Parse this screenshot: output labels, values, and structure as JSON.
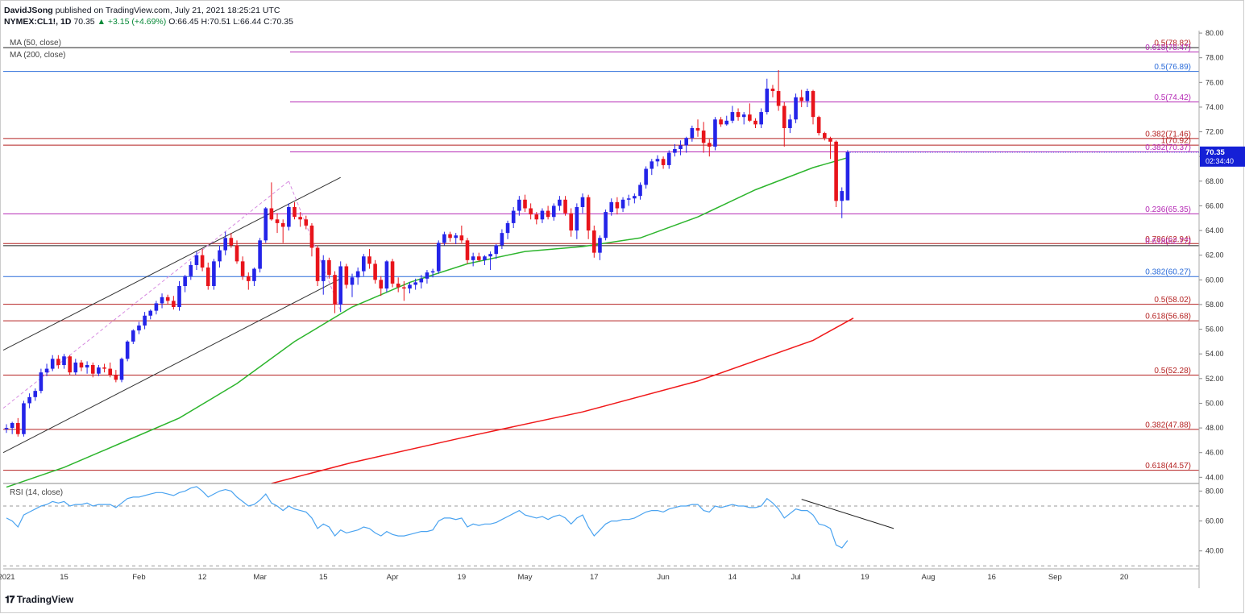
{
  "header": {
    "publisher": "DavidJSong",
    "published_text": "published on TradingView.com, July 21, 2021 18:25:21 UTC",
    "symbol": "NYMEX:CL1!, 1D",
    "last": "70.35",
    "change": "▲ +3.15 (+4.69%)",
    "open": "O:66.45",
    "high": "H:70.51",
    "low": "L:66.44",
    "close": "C:70.35"
  },
  "indicators": {
    "ma50": "MA (50, close)",
    "ma200": "MA (200, close)",
    "rsi": "RSI (14, close)"
  },
  "price_tag": {
    "value": "70.35",
    "countdown": "02:34:40"
  },
  "brand": "TradingView",
  "colors": {
    "up": "#2424e8",
    "down": "#e8141b",
    "ma50": "#2db52d",
    "ma200": "#f0191a",
    "rsi": "#4aa3f0",
    "fib_magenta": "#b52ab5",
    "fib_blue": "#2a6bd9",
    "fib_red": "#b52222",
    "channel": "#000000"
  },
  "chart_data": [
    {
      "type": "candlestick",
      "title": "NYMEX:CL1!, 1D",
      "ylim": [
        43.5,
        80.2
      ],
      "yticks": [
        "80.00",
        "78.00",
        "76.00",
        "74.00",
        "72.00",
        "70.00",
        "68.00",
        "66.00",
        "64.00",
        "62.00",
        "60.00",
        "58.00",
        "56.00",
        "54.00",
        "52.00",
        "50.00",
        "48.00",
        "46.00",
        "44.00"
      ],
      "xticks": [
        "2021",
        "15",
        "Feb",
        "12",
        "Mar",
        "15",
        "Apr",
        "19",
        "May",
        "17",
        "Jun",
        "14",
        "Jul",
        "19",
        "Aug",
        "16",
        "Sep",
        "20"
      ],
      "candles": [
        [
          47.9,
          48.3,
          47.6,
          48.0
        ],
        [
          48.0,
          48.5,
          47.5,
          48.4
        ],
        [
          48.4,
          48.8,
          47.3,
          47.5
        ],
        [
          47.5,
          50.2,
          47.3,
          50.0
        ],
        [
          50.0,
          50.8,
          49.6,
          50.5
        ],
        [
          50.5,
          51.2,
          50.2,
          51.0
        ],
        [
          51.0,
          52.8,
          50.8,
          52.5
        ],
        [
          52.5,
          53.2,
          52.2,
          52.8
        ],
        [
          52.8,
          53.9,
          52.6,
          53.6
        ],
        [
          53.6,
          53.9,
          52.8,
          53.1
        ],
        [
          53.1,
          54.0,
          52.8,
          53.8
        ],
        [
          53.8,
          53.9,
          52.3,
          52.5
        ],
        [
          52.5,
          53.6,
          52.3,
          53.3
        ],
        [
          53.3,
          53.5,
          52.6,
          52.9
        ],
        [
          52.9,
          53.4,
          52.4,
          53.1
        ],
        [
          53.1,
          53.3,
          52.1,
          52.4
        ],
        [
          52.4,
          53.1,
          52.2,
          52.9
        ],
        [
          52.9,
          53.2,
          52.5,
          52.8
        ],
        [
          52.8,
          53.3,
          52.1,
          52.3
        ],
        [
          52.3,
          52.7,
          51.7,
          51.9
        ],
        [
          51.9,
          53.7,
          51.7,
          53.6
        ],
        [
          53.6,
          55.1,
          53.4,
          55.0
        ],
        [
          55.0,
          56.0,
          54.8,
          55.9
        ],
        [
          55.9,
          56.6,
          55.6,
          56.3
        ],
        [
          56.3,
          57.4,
          56.0,
          57.1
        ],
        [
          57.1,
          57.6,
          56.8,
          57.5
        ],
        [
          57.5,
          58.3,
          57.2,
          58.1
        ],
        [
          58.1,
          58.9,
          57.7,
          58.6
        ],
        [
          58.6,
          58.8,
          58.0,
          58.3
        ],
        [
          58.3,
          58.7,
          57.6,
          57.8
        ],
        [
          57.8,
          59.9,
          57.5,
          59.5
        ],
        [
          59.5,
          60.4,
          59.0,
          60.3
        ],
        [
          60.3,
          61.5,
          60.0,
          61.2
        ],
        [
          61.2,
          62.3,
          60.8,
          62.0
        ],
        [
          62.0,
          62.5,
          60.7,
          61.0
        ],
        [
          61.0,
          61.4,
          59.2,
          59.5
        ],
        [
          59.5,
          61.7,
          59.2,
          61.5
        ],
        [
          61.5,
          62.8,
          61.0,
          62.4
        ],
        [
          62.4,
          63.9,
          62.0,
          63.4
        ],
        [
          63.4,
          63.8,
          62.6,
          62.8
        ],
        [
          62.8,
          63.2,
          61.3,
          61.5
        ],
        [
          61.5,
          61.9,
          60.0,
          60.3
        ],
        [
          60.3,
          60.6,
          59.2,
          59.9
        ],
        [
          59.9,
          61.0,
          59.5,
          60.9
        ],
        [
          60.9,
          63.4,
          60.6,
          63.2
        ],
        [
          63.2,
          65.9,
          63.0,
          65.8
        ],
        [
          65.8,
          67.9,
          64.8,
          64.9
        ],
        [
          64.9,
          65.4,
          63.8,
          64.6
        ],
        [
          64.6,
          64.9,
          63.0,
          64.3
        ],
        [
          64.3,
          66.2,
          64.0,
          65.9
        ],
        [
          65.9,
          66.3,
          64.9,
          65.1
        ],
        [
          65.1,
          65.5,
          64.3,
          64.9
        ],
        [
          64.9,
          65.2,
          64.1,
          64.4
        ],
        [
          64.4,
          64.6,
          61.9,
          62.6
        ],
        [
          62.6,
          62.8,
          59.5,
          59.9
        ],
        [
          59.9,
          62.0,
          58.8,
          61.6
        ],
        [
          61.6,
          61.8,
          60.1,
          60.4
        ],
        [
          60.4,
          60.7,
          57.3,
          58.0
        ],
        [
          58.0,
          61.5,
          57.4,
          61.1
        ],
        [
          61.1,
          61.3,
          59.3,
          59.6
        ],
        [
          59.6,
          60.5,
          58.6,
          60.2
        ],
        [
          60.2,
          61.0,
          59.6,
          60.7
        ],
        [
          60.7,
          62.1,
          60.3,
          61.9
        ],
        [
          61.9,
          62.5,
          60.9,
          61.3
        ],
        [
          61.3,
          61.6,
          59.7,
          60.0
        ],
        [
          60.0,
          60.3,
          58.7,
          59.3
        ],
        [
          59.3,
          61.6,
          59.0,
          61.5
        ],
        [
          61.5,
          61.7,
          59.4,
          59.7
        ],
        [
          59.7,
          60.2,
          59.0,
          59.4
        ],
        [
          59.4,
          59.9,
          58.3,
          59.3
        ],
        [
          59.3,
          59.8,
          58.9,
          59.6
        ],
        [
          59.6,
          60.1,
          59.2,
          59.8
        ],
        [
          59.8,
          60.4,
          59.3,
          60.1
        ],
        [
          60.1,
          60.8,
          59.7,
          60.6
        ],
        [
          60.6,
          60.9,
          60.2,
          60.7
        ],
        [
          60.7,
          63.2,
          60.5,
          63.0
        ],
        [
          63.0,
          63.9,
          62.8,
          63.7
        ],
        [
          63.7,
          63.9,
          63.1,
          63.4
        ],
        [
          63.4,
          63.8,
          62.9,
          63.6
        ],
        [
          63.6,
          64.4,
          63.0,
          63.2
        ],
        [
          63.2,
          63.4,
          61.3,
          61.6
        ],
        [
          61.6,
          62.2,
          61.1,
          61.9
        ],
        [
          61.9,
          62.2,
          61.5,
          61.6
        ],
        [
          61.6,
          62.0,
          61.2,
          61.9
        ],
        [
          61.9,
          62.3,
          60.8,
          62.1
        ],
        [
          62.1,
          62.9,
          61.7,
          62.8
        ],
        [
          62.8,
          64.1,
          62.5,
          63.8
        ],
        [
          63.8,
          64.8,
          63.3,
          64.6
        ],
        [
          64.6,
          65.9,
          64.2,
          65.6
        ],
        [
          65.6,
          66.8,
          65.2,
          66.5
        ],
        [
          66.5,
          66.9,
          65.5,
          65.8
        ],
        [
          65.8,
          66.2,
          64.9,
          65.3
        ],
        [
          65.3,
          65.5,
          64.5,
          64.9
        ],
        [
          64.9,
          65.8,
          64.6,
          65.6
        ],
        [
          65.6,
          66.0,
          64.9,
          65.1
        ],
        [
          65.1,
          66.2,
          64.8,
          66.0
        ],
        [
          66.0,
          66.8,
          65.6,
          66.5
        ],
        [
          66.5,
          66.8,
          65.2,
          65.4
        ],
        [
          65.4,
          65.8,
          63.5,
          64.0
        ],
        [
          64.0,
          66.2,
          63.3,
          65.9
        ],
        [
          65.9,
          67.0,
          65.4,
          66.7
        ],
        [
          66.7,
          66.9,
          63.3,
          64.0
        ],
        [
          64.0,
          64.4,
          61.8,
          62.2
        ],
        [
          62.2,
          63.6,
          61.6,
          63.4
        ],
        [
          63.4,
          65.7,
          63.2,
          65.5
        ],
        [
          65.5,
          66.6,
          65.2,
          66.3
        ],
        [
          66.3,
          66.7,
          65.3,
          65.8
        ],
        [
          65.8,
          66.7,
          65.5,
          66.5
        ],
        [
          66.5,
          66.9,
          66.0,
          66.6
        ],
        [
          66.6,
          67.0,
          66.2,
          66.8
        ],
        [
          66.8,
          67.9,
          66.5,
          67.7
        ],
        [
          67.7,
          69.2,
          67.4,
          69.0
        ],
        [
          69.0,
          69.8,
          68.5,
          69.6
        ],
        [
          69.6,
          70.1,
          69.2,
          69.8
        ],
        [
          69.8,
          70.0,
          69.0,
          69.3
        ],
        [
          69.3,
          70.5,
          69.0,
          70.3
        ],
        [
          70.3,
          71.0,
          70.0,
          70.6
        ],
        [
          70.6,
          71.3,
          70.1,
          70.9
        ],
        [
          70.9,
          71.6,
          70.3,
          71.5
        ],
        [
          71.5,
          72.5,
          71.2,
          72.3
        ],
        [
          72.3,
          73.0,
          71.6,
          72.1
        ],
        [
          72.1,
          72.8,
          70.3,
          71.1
        ],
        [
          71.1,
          71.4,
          70.0,
          70.8
        ],
        [
          70.8,
          73.2,
          70.5,
          73.0
        ],
        [
          73.0,
          73.2,
          72.4,
          72.6
        ],
        [
          72.6,
          73.3,
          72.5,
          72.9
        ],
        [
          72.9,
          74.1,
          72.7,
          73.6
        ],
        [
          73.6,
          73.9,
          72.9,
          73.2
        ],
        [
          73.2,
          73.6,
          72.6,
          73.4
        ],
        [
          73.4,
          74.3,
          72.8,
          72.9
        ],
        [
          72.9,
          73.1,
          72.3,
          72.6
        ],
        [
          72.6,
          73.9,
          72.3,
          73.6
        ],
        [
          73.6,
          76.3,
          73.4,
          75.5
        ],
        [
          75.5,
          75.8,
          74.8,
          75.3
        ],
        [
          75.3,
          77.0,
          73.7,
          74.1
        ],
        [
          74.1,
          74.4,
          70.8,
          72.3
        ],
        [
          72.3,
          73.4,
          71.9,
          73.0
        ],
        [
          73.0,
          75.1,
          72.7,
          74.8
        ],
        [
          74.8,
          75.4,
          74.0,
          74.5
        ],
        [
          74.5,
          75.5,
          74.0,
          75.3
        ],
        [
          75.3,
          75.4,
          72.6,
          73.2
        ],
        [
          73.2,
          73.3,
          71.7,
          71.9
        ],
        [
          71.9,
          72.0,
          71.3,
          71.5
        ],
        [
          71.5,
          71.6,
          69.8,
          71.2
        ],
        [
          71.2,
          71.3,
          65.9,
          66.4
        ],
        [
          66.4,
          67.5,
          65.0,
          67.2
        ],
        [
          66.45,
          70.51,
          66.44,
          70.35
        ]
      ],
      "ma50": [
        [
          0,
          43.2
        ],
        [
          10,
          44.8
        ],
        [
          20,
          46.8
        ],
        [
          30,
          48.8
        ],
        [
          40,
          51.6
        ],
        [
          50,
          55.0
        ],
        [
          60,
          57.8
        ],
        [
          70,
          59.8
        ],
        [
          80,
          61.3
        ],
        [
          90,
          62.3
        ],
        [
          100,
          62.7
        ],
        [
          110,
          63.4
        ],
        [
          120,
          65.1
        ],
        [
          130,
          67.3
        ],
        [
          140,
          69.1
        ],
        [
          146,
          69.9
        ]
      ],
      "ma200": [
        [
          46,
          43.5
        ],
        [
          60,
          45.2
        ],
        [
          80,
          47.3
        ],
        [
          100,
          49.3
        ],
        [
          120,
          51.8
        ],
        [
          140,
          55.1
        ],
        [
          147,
          56.9
        ]
      ],
      "fib_levels": [
        {
          "label": "0.5(78.82)",
          "value": 78.82,
          "color": "#b52222"
        },
        {
          "label": "0.618(78.47)",
          "value": 78.47,
          "color": "#b52ab5"
        },
        {
          "label": "0.5(76.89)",
          "value": 76.89,
          "color": "#2a6bd9"
        },
        {
          "label": "0.5(74.42)",
          "value": 74.42,
          "color": "#b52ab5"
        },
        {
          "label": "0.382(71.46)",
          "value": 71.46,
          "color": "#b52222"
        },
        {
          "label": "1(70.92)",
          "value": 70.92,
          "color": "#b52222"
        },
        {
          "label": "0.382(70.37)",
          "value": 70.37,
          "color": "#b52ab5"
        },
        {
          "label": "0.236(65.35)",
          "value": 65.35,
          "color": "#b52ab5"
        },
        {
          "label": "0.786(62.94)",
          "value": 62.94,
          "color": "#b52222"
        },
        {
          "label": "0.618(62.77)",
          "value": 62.77,
          "color": "#b52ab5"
        },
        {
          "label": "0.382(60.27)",
          "value": 60.27,
          "color": "#2a6bd9"
        },
        {
          "label": "0.5(58.02)",
          "value": 58.02,
          "color": "#b52222"
        },
        {
          "label": "0.618(56.68)",
          "value": 56.68,
          "color": "#b52222"
        },
        {
          "label": "0.5(52.28)",
          "value": 52.28,
          "color": "#b52222"
        },
        {
          "label": "0.382(47.88)",
          "value": 47.88,
          "color": "#b52222"
        },
        {
          "label": "0.618(44.57)",
          "value": 44.57,
          "color": "#b52222"
        }
      ]
    },
    {
      "type": "line",
      "title": "RSI (14, close)",
      "ylim": [
        28,
        84
      ],
      "yticks": [
        "80.00",
        "60.00",
        "40.00"
      ],
      "bands": [
        70,
        30
      ],
      "values": [
        62,
        60,
        56,
        64,
        66,
        68,
        70,
        71,
        73,
        72,
        73,
        70,
        71,
        71,
        72,
        70,
        71,
        71,
        71,
        69,
        72,
        75,
        76,
        76,
        77,
        78,
        79,
        79,
        78,
        77,
        79,
        80,
        82,
        83,
        80,
        76,
        78,
        80,
        81,
        80,
        76,
        73,
        70,
        71,
        74,
        78,
        72,
        70,
        67,
        70,
        68,
        67,
        66,
        62,
        55,
        58,
        56,
        50,
        54,
        52,
        53,
        54,
        56,
        55,
        52,
        50,
        53,
        51,
        50,
        50,
        51,
        52,
        53,
        53,
        54,
        60,
        62,
        62,
        61,
        62,
        56,
        58,
        57,
        58,
        58,
        59,
        61,
        63,
        65,
        67,
        64,
        63,
        62,
        63,
        61,
        63,
        64,
        62,
        58,
        62,
        64,
        56,
        50,
        54,
        58,
        60,
        60,
        61,
        61,
        62,
        64,
        66,
        67,
        67,
        66,
        68,
        69,
        70,
        70,
        71,
        71,
        67,
        66,
        70,
        69,
        70,
        71,
        70,
        70,
        69,
        69,
        70,
        75,
        72,
        68,
        62,
        65,
        68,
        67,
        67,
        64,
        58,
        57,
        55,
        44,
        42,
        47
      ]
    }
  ]
}
